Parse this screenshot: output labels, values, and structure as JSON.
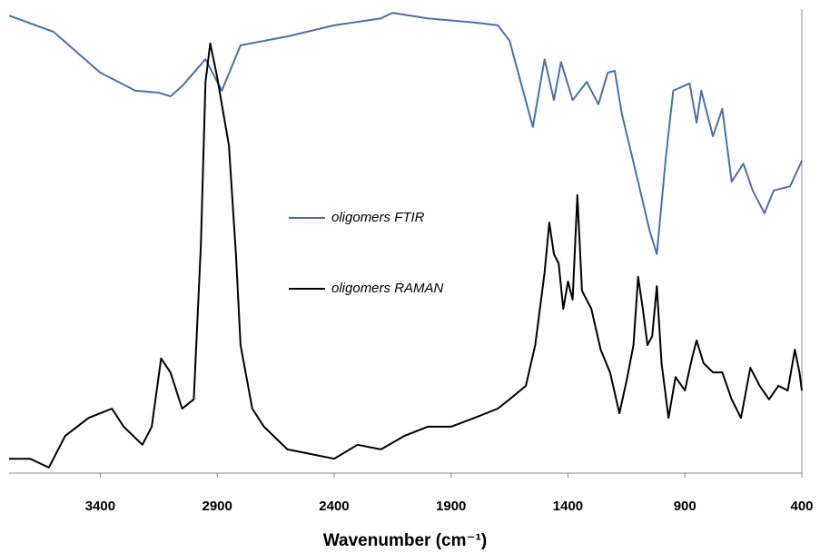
{
  "chart_data": {
    "type": "line",
    "x_label": "Wavenumber (cm⁻¹)",
    "xlim": [
      3790,
      400
    ],
    "xticks": [
      3400,
      2900,
      2400,
      1900,
      1400,
      900,
      400
    ],
    "ylim": [
      0,
      100
    ],
    "legend": "center",
    "series": [
      {
        "name": "oligomers FTIR",
        "color": "#4a6fae",
        "x": [
          3790,
          3600,
          3400,
          3250,
          3150,
          3100,
          3050,
          2950,
          2880,
          2800,
          2600,
          2400,
          2200,
          2150,
          2000,
          1800,
          1700,
          1650,
          1550,
          1500,
          1460,
          1430,
          1380,
          1320,
          1270,
          1230,
          1200,
          1170,
          1100,
          1050,
          1020,
          980,
          950,
          880,
          850,
          830,
          780,
          740,
          700,
          650,
          610,
          560,
          520,
          450,
          400
        ],
        "values": [
          98.6,
          95.1,
          86.3,
          82.4,
          82.0,
          81.2,
          83.4,
          89.2,
          82.4,
          92.2,
          94.1,
          96.5,
          98.0,
          99.2,
          98.0,
          97.1,
          96.5,
          93.2,
          74.6,
          89.2,
          80.4,
          88.6,
          80.4,
          84.3,
          79.5,
          86.3,
          86.7,
          77.5,
          62.8,
          52.1,
          47.2,
          68.7,
          82.4,
          84.0,
          75.5,
          82.4,
          72.6,
          78.5,
          62.8,
          66.7,
          60.9,
          56.0,
          60.9,
          61.8,
          67.3
        ]
      },
      {
        "name": "oligomers RAMAN",
        "color": "#000000",
        "x": [
          3790,
          3700,
          3620,
          3550,
          3450,
          3350,
          3300,
          3220,
          3180,
          3140,
          3100,
          3050,
          3000,
          2970,
          2950,
          2930,
          2900,
          2870,
          2850,
          2820,
          2800,
          2750,
          2700,
          2600,
          2500,
          2400,
          2300,
          2200,
          2100,
          2000,
          1900,
          1800,
          1700,
          1650,
          1580,
          1540,
          1500,
          1480,
          1460,
          1440,
          1420,
          1400,
          1380,
          1360,
          1340,
          1300,
          1260,
          1220,
          1180,
          1150,
          1120,
          1100,
          1080,
          1060,
          1040,
          1020,
          1000,
          970,
          940,
          900,
          870,
          850,
          820,
          780,
          740,
          700,
          660,
          620,
          580,
          540,
          500,
          460,
          430,
          410,
          400
        ],
        "values": [
          3.1,
          3.1,
          1.2,
          8.0,
          11.9,
          13.9,
          10.0,
          6.1,
          10.0,
          24.7,
          21.7,
          13.9,
          15.9,
          49.1,
          84.3,
          92.6,
          85.3,
          76.5,
          70.6,
          47.2,
          27.6,
          13.9,
          10.0,
          5.1,
          4.1,
          3.1,
          6.1,
          5.1,
          8.0,
          10.0,
          10.0,
          11.9,
          13.9,
          15.9,
          18.8,
          27.6,
          43.2,
          54.0,
          47.2,
          45.2,
          35.4,
          41.3,
          37.4,
          59.9,
          39.3,
          35.4,
          26.6,
          21.7,
          12.9,
          19.8,
          27.6,
          42.3,
          35.4,
          27.6,
          29.5,
          40.3,
          23.7,
          11.9,
          20.7,
          17.8,
          24.7,
          28.6,
          23.7,
          21.7,
          21.7,
          15.9,
          11.9,
          22.7,
          18.8,
          15.9,
          18.8,
          17.8,
          26.6,
          21.7,
          17.8
        ]
      }
    ]
  }
}
